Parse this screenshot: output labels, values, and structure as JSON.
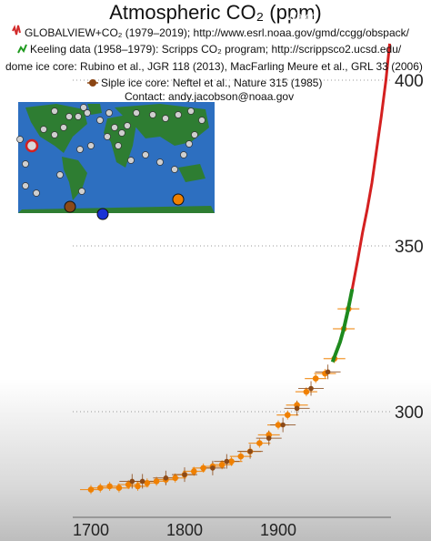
{
  "title": "Atmospheric CO₂ (ppm)",
  "overlay_label": "Watch",
  "legend": [
    {
      "text": "GLOBALVIEW+CO₂ (1979–2019); http://www.esrl.noaa.gov/gmd/ccgg/obspack/",
      "color": "#d22b2b"
    },
    {
      "text": "Keeling data (1958–1979): Scripps CO₂ program; http://scrippsco2.ucsd.edu/",
      "color": "#1f9a1f"
    },
    {
      "text": "dome ice core:  Rubino et al., JGR 118 (2013), MacFarling Meure et al., GRL 33 (2006)",
      "color": "#ff8c00"
    },
    {
      "text": "Siple ice core:  Neftel et al., Nature 315 (1985)",
      "color": "#8b4513"
    }
  ],
  "contact": "Contact: andy.jacobson@noaa.gov",
  "colors": {
    "globalview": "#d42020",
    "keeling": "#1e8a1e",
    "law_dome": "#f08000",
    "siple": "#8b4a18",
    "map_ocean": "#2d6fc0",
    "map_land": "#2e7d32"
  },
  "chart_data": {
    "type": "scatter",
    "title": "Atmospheric CO₂ (ppm)",
    "xlim": [
      1680,
      2025
    ],
    "ylim": [
      265,
      420
    ],
    "xticks": [
      1700,
      1800,
      1900
    ],
    "yticks": [
      300,
      350,
      400
    ],
    "grid": "dotted lines at y ticks",
    "series": [
      {
        "name": "GLOBALVIEW+CO₂ (1979–2019)",
        "style": "line",
        "x": [
          1979,
          1985,
          1990,
          1995,
          2000,
          2005,
          2010,
          2015,
          2019
        ],
        "y": [
          337,
          346,
          354,
          361,
          369,
          379,
          389,
          400,
          411
        ]
      },
      {
        "name": "Keeling data (1958–1979)",
        "style": "line",
        "x": [
          1958,
          1962,
          1966,
          1970,
          1974,
          1979
        ],
        "y": [
          315,
          318,
          321,
          325,
          330,
          337
        ]
      },
      {
        "name": "dome ice core",
        "style": "points",
        "x": [
          1700,
          1710,
          1720,
          1730,
          1740,
          1750,
          1760,
          1770,
          1780,
          1790,
          1800,
          1810,
          1820,
          1830,
          1840,
          1850,
          1860,
          1870,
          1880,
          1890,
          1900,
          1910,
          1920,
          1930,
          1940,
          1950,
          1960,
          1970,
          1975
        ],
        "y": [
          276.5,
          277,
          277.5,
          277,
          278,
          277.5,
          278.5,
          279,
          279.5,
          280,
          281,
          282,
          283,
          283.5,
          284,
          285,
          286.5,
          288,
          290.5,
          293,
          296,
          299,
          302,
          306,
          310,
          311.5,
          316,
          325,
          331
        ]
      },
      {
        "name": "Siple ice core",
        "style": "points",
        "x": [
          1744,
          1755,
          1780,
          1800,
          1830,
          1845,
          1870,
          1890,
          1905,
          1920,
          1935,
          1953
        ],
        "y": [
          279,
          279,
          280,
          281,
          283,
          285,
          288,
          292,
          296,
          301,
          307,
          312
        ]
      }
    ]
  }
}
